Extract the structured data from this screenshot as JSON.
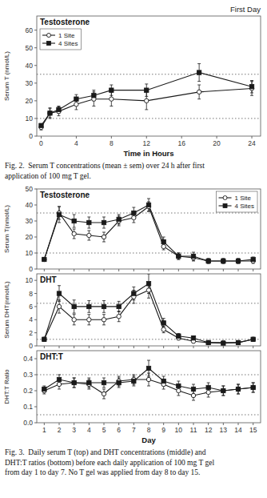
{
  "chart_data": [
    {
      "type": "line",
      "title": "Testosterone",
      "subtitle": "First Day",
      "xlabel": "Time in Hours",
      "ylabel": "Serum T (nmol/L)",
      "x": [
        0,
        1,
        2,
        4,
        6,
        8,
        12,
        18,
        24
      ],
      "xlim": [
        -0.5,
        25
      ],
      "xticks": [
        0,
        4,
        8,
        12,
        16,
        20,
        24
      ],
      "ylim": [
        0,
        68
      ],
      "yticks": [
        0,
        10,
        20,
        30,
        40,
        50,
        60
      ],
      "reference_lines": [
        10,
        35
      ],
      "grid": false,
      "legend": "upper left",
      "series": [
        {
          "name": "1 Site",
          "color": "#1a1a1a",
          "marker": "circle",
          "line_style": "solid",
          "values": [
            5,
            13,
            14,
            18,
            21,
            21,
            20,
            25,
            27
          ],
          "errors": [
            1.5,
            3,
            2.5,
            3,
            4,
            4,
            5,
            4,
            4
          ]
        },
        {
          "name": "4 Sites",
          "color": "#1a1a1a",
          "marker": "square",
          "line_style": "solid",
          "values": [
            6,
            13,
            15,
            21,
            23,
            26,
            26,
            36,
            28
          ],
          "errors": [
            1,
            2.5,
            2,
            2.5,
            3,
            3,
            3.5,
            5,
            3.5
          ]
        }
      ],
      "caption": "Fig. 2.  Serum T concentrations (mean ± sem) over 24 h after first\napplication of 100 mg T gel."
    },
    {
      "type": "line",
      "title": "Testosterone",
      "ylabel": "Serum T(nmol/L)",
      "x": [
        1,
        2,
        3,
        4,
        5,
        6,
        7,
        8,
        9,
        10,
        11,
        12,
        13,
        14,
        15
      ],
      "xlim": [
        0.5,
        15.5
      ],
      "xticks": [
        1,
        2,
        3,
        4,
        5,
        6,
        7,
        8,
        9,
        10,
        11,
        12,
        13,
        14,
        15
      ],
      "ylim": [
        0,
        50
      ],
      "yticks": [
        0,
        10,
        20,
        30,
        40,
        50
      ],
      "reference_lines": [
        10,
        35
      ],
      "grid": false,
      "legend": "upper right",
      "tick_labels": "y",
      "series": [
        {
          "name": "1 Site",
          "color": "#1a1a1a",
          "marker": "circle",
          "line_style": "solid",
          "values": [
            6,
            35,
            22,
            21,
            20,
            30,
            32,
            39,
            14,
            8,
            7,
            5,
            5,
            5,
            5
          ],
          "errors": [
            1,
            4,
            3,
            3,
            3,
            3,
            3,
            3,
            2,
            2,
            2,
            1.5,
            1.5,
            1.5,
            1.5
          ]
        },
        {
          "name": "4 Sites",
          "color": "#1a1a1a",
          "marker": "square",
          "line_style": "solid",
          "values": [
            6,
            34,
            30,
            29,
            29,
            31,
            35,
            40,
            17,
            8,
            8,
            5,
            5,
            5,
            6
          ],
          "errors": [
            1,
            5,
            4,
            3.5,
            3.5,
            3,
            3.5,
            4,
            3,
            2,
            2.5,
            1.5,
            1.5,
            1.5,
            1.5
          ]
        }
      ]
    },
    {
      "type": "line",
      "title": "DHT",
      "ylabel": "Serum DHT(nmol/L)",
      "x": [
        1,
        2,
        3,
        4,
        5,
        6,
        7,
        8,
        9,
        10,
        11,
        12,
        13,
        14,
        15
      ],
      "xlim": [
        0.5,
        15.5
      ],
      "xticks": [
        1,
        2,
        3,
        4,
        5,
        6,
        7,
        8,
        9,
        10,
        11,
        12,
        13,
        14,
        15
      ],
      "ylim": [
        0,
        11
      ],
      "yticks": [
        0,
        2,
        4,
        6,
        8,
        10
      ],
      "reference_lines": [
        1,
        6.5
      ],
      "grid": false,
      "tick_labels": "y",
      "series": [
        {
          "color": "#1a1a1a",
          "marker": "circle",
          "line_style": "solid",
          "values": [
            1,
            6,
            4,
            4,
            4,
            4.5,
            7.5,
            8.5,
            2.5,
            1.2,
            0.7,
            0.5,
            0.5,
            0.5,
            1.0
          ],
          "errors": [
            0.3,
            1,
            0.8,
            0.8,
            0.8,
            0.8,
            1,
            1.2,
            0.5,
            0.3,
            0.2,
            0.2,
            0.2,
            0.2,
            0.3
          ]
        },
        {
          "color": "#1a1a1a",
          "marker": "square",
          "line_style": "solid",
          "values": [
            1,
            8,
            6,
            6,
            6,
            6,
            8,
            9.5,
            3.5,
            1.5,
            1.2,
            0.5,
            0.4,
            0.5,
            1.0
          ],
          "errors": [
            0.3,
            1.2,
            1,
            0.9,
            0.9,
            0.8,
            1,
            1.5,
            0.7,
            0.4,
            0.3,
            0.2,
            0.2,
            0.2,
            0.3
          ]
        }
      ]
    },
    {
      "type": "line",
      "title": "DHT:T",
      "xlabel": "Day",
      "ylabel": "DHT:T Ratio",
      "x": [
        1,
        2,
        3,
        4,
        5,
        6,
        7,
        8,
        9,
        10,
        11,
        12,
        13,
        14,
        15
      ],
      "xlim": [
        0.5,
        15.5
      ],
      "xticks": [
        1,
        2,
        3,
        4,
        5,
        6,
        7,
        8,
        9,
        10,
        11,
        12,
        13,
        14,
        15
      ],
      "ylim": [
        0.0,
        0.45
      ],
      "yticks": [
        {
          "value": 0,
          "label": "0.0"
        },
        0.1,
        0.2,
        0.3,
        0.4
      ],
      "reference_lines": [
        0.05,
        0.3
      ],
      "grid": false,
      "series": [
        {
          "color": "#1a1a1a",
          "marker": "circle",
          "line_style": "solid",
          "values": [
            0.2,
            0.24,
            0.25,
            0.24,
            0.18,
            0.26,
            0.27,
            0.27,
            0.24,
            0.2,
            0.17,
            0.19,
            0.2,
            0.21,
            0.22
          ],
          "errors": [
            0.02,
            0.03,
            0.03,
            0.03,
            0.03,
            0.03,
            0.03,
            0.04,
            0.03,
            0.03,
            0.03,
            0.03,
            0.03,
            0.03,
            0.03
          ]
        },
        {
          "color": "#1a1a1a",
          "marker": "square",
          "line_style": "solid",
          "values": [
            0.21,
            0.27,
            0.25,
            0.25,
            0.25,
            0.25,
            0.26,
            0.34,
            0.26,
            0.23,
            0.21,
            0.22,
            0.2,
            0.21,
            0.22
          ],
          "errors": [
            0.02,
            0.03,
            0.03,
            0.03,
            0.03,
            0.03,
            0.03,
            0.05,
            0.03,
            0.03,
            0.03,
            0.03,
            0.03,
            0.03,
            0.03
          ]
        }
      ],
      "caption": "Fig. 3.  Daily serum T (top) and DHT concentrations (middle) and\nDHT:T ratios (bottom) before each daily application of 100 mg T gel\nfrom day 1 to day 7. No T gel was applied from day 8 to day 15."
    }
  ]
}
